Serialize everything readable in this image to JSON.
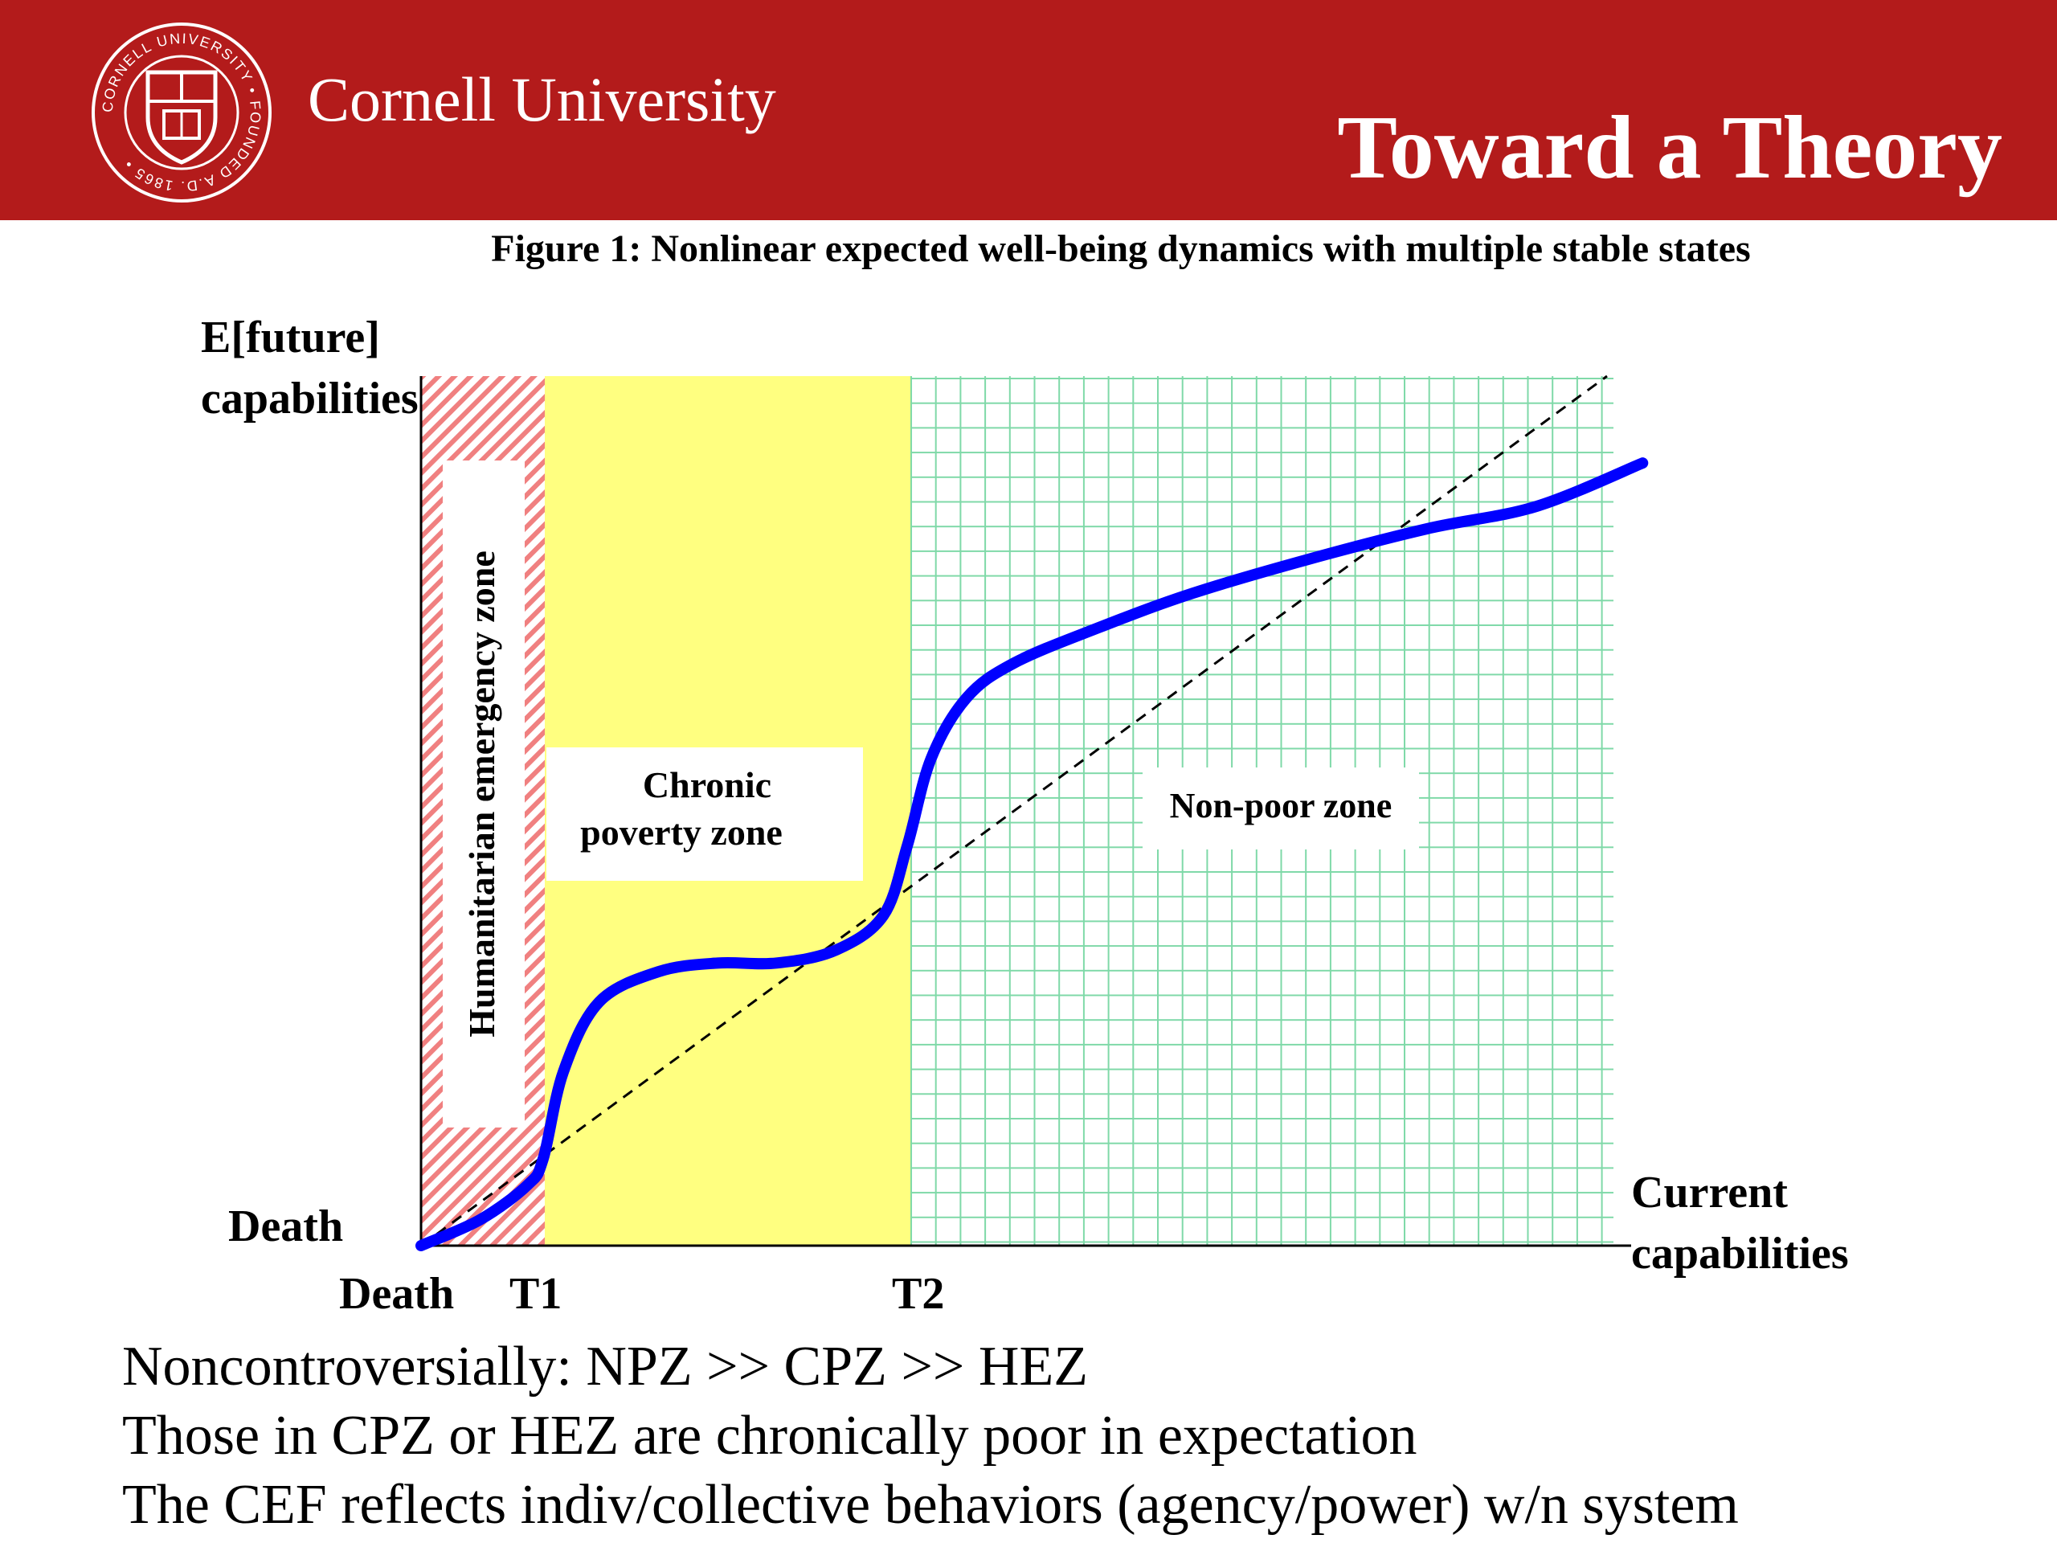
{
  "header": {
    "university_name": "Cornell University",
    "slide_title": "Toward a Theory",
    "seal": {
      "label": "Cornell University seal",
      "ring_text": "CORNELL UNIVERSITY • FOUNDED A.D. 1865 •"
    },
    "colors": {
      "brand_red": "#b31b1b",
      "text": "#ffffff"
    }
  },
  "figure": {
    "caption": "Figure 1: Nonlinear expected well-being dynamics with multiple stable states",
    "y_axis_label_line1": "E[future]",
    "y_axis_label_line2": "capabilities",
    "x_axis_label_line1": "Current",
    "x_axis_label_line2": "capabilities",
    "y_axis_origin_label": "Death",
    "x_axis_origin_label": "Death",
    "threshold_labels": [
      "T1",
      "T2"
    ],
    "zones": {
      "humanitarian": {
        "label": "Humanitarian emergency zone",
        "color": "#f08080"
      },
      "chronic_line1": "Chronic",
      "chronic_line2": "poverty zone",
      "chronic_color": "#ffff80",
      "nonpoor": {
        "label": "Non-poor zone",
        "color": "#7fd9a8"
      }
    },
    "curve_color": "#0000ff"
  },
  "chart_data": {
    "type": "line",
    "title": "Figure 1: Nonlinear expected well-being dynamics with multiple stable states",
    "xlabel": "Current capabilities",
    "ylabel": "E[future] capabilities",
    "xlim": [
      0,
      100
    ],
    "ylim": [
      0,
      100
    ],
    "thresholds": {
      "T1": 10.3,
      "T2": 41
    },
    "series": [
      {
        "name": "Capability evolution function",
        "x": [
          0,
          5,
          9,
          10.3,
          12,
          15,
          20,
          25,
          30,
          35,
          39,
          41,
          43,
          46,
          50,
          57,
          65,
          75,
          85,
          94,
          103
        ],
        "y": [
          0,
          3,
          7,
          10,
          20,
          28,
          31.5,
          32.5,
          32.5,
          34,
          38,
          46,
          56,
          63,
          67,
          71,
          75,
          79,
          82.5,
          85,
          90
        ]
      },
      {
        "name": "45-degree line",
        "x": [
          0,
          100
        ],
        "y": [
          0,
          100
        ]
      }
    ]
  },
  "bullets": [
    "Noncontroversially: NPZ >> CPZ >> HEZ",
    "Those in CPZ or HEZ are chronically poor in expectation",
    "The CEF reflects indiv/collective behaviors (agency/power) w/n system"
  ]
}
